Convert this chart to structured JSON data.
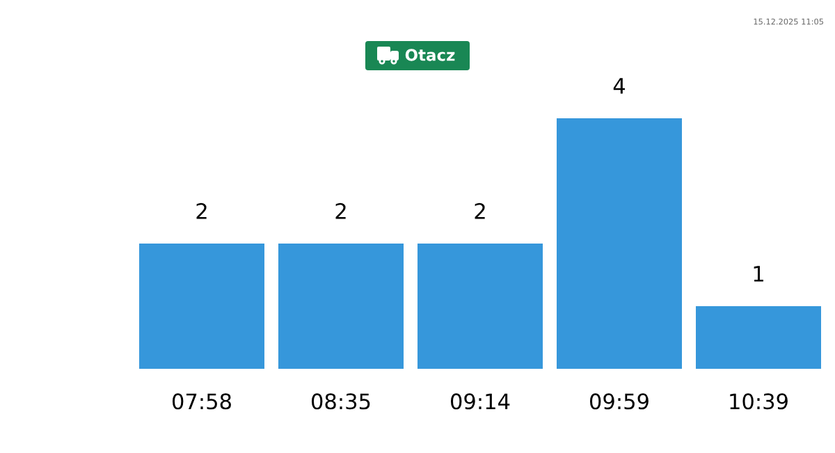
{
  "chart_data": {
    "type": "bar",
    "title": "Otacz",
    "categories": [
      "07:58",
      "08:35",
      "09:14",
      "09:59",
      "10:39"
    ],
    "values": [
      2,
      2,
      2,
      4,
      1
    ],
    "color": "#3697db",
    "data_labels": true,
    "annotations": [
      "15.12.2025 11:05"
    ]
  }
}
